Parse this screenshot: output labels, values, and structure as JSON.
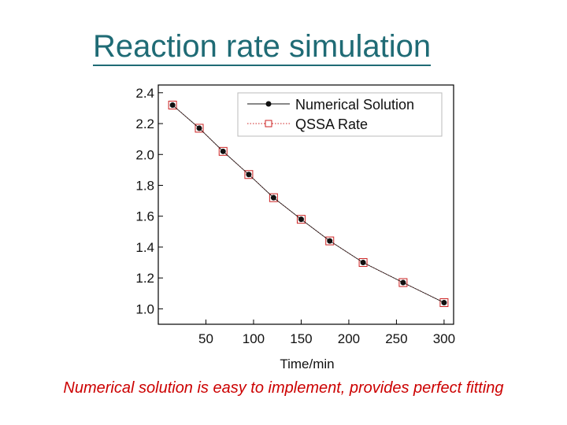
{
  "slide": {
    "title": "Reaction rate simulation",
    "caption": "Numerical solution is easy to implement, provides perfect fitting"
  },
  "colors": {
    "title": "#1f6b75",
    "caption": "#cc0000",
    "numerical": "#111111",
    "qssa": "#cc2222"
  },
  "chart_data": {
    "type": "line",
    "xlabel": "Time/min",
    "ylabel": "",
    "xlim": [
      0,
      310
    ],
    "ylim": [
      0.9,
      2.45
    ],
    "x_ticks": [
      50,
      100,
      150,
      200,
      250,
      300
    ],
    "y_ticks": [
      1.0,
      1.2,
      1.4,
      1.6,
      1.8,
      2.0,
      2.2,
      2.4
    ],
    "legend_position": "top-right",
    "grid": false,
    "series": [
      {
        "name": "Numerical Solution",
        "marker": "filled-circle",
        "line": "solid",
        "x": [
          15,
          43,
          68,
          95,
          121,
          150,
          180,
          215,
          257,
          300
        ],
        "y": [
          2.32,
          2.17,
          2.02,
          1.87,
          1.72,
          1.58,
          1.44,
          1.3,
          1.17,
          1.04
        ]
      },
      {
        "name": "QSSA Rate",
        "marker": "open-square",
        "line": "dotted",
        "x": [
          15,
          43,
          68,
          95,
          121,
          150,
          180,
          215,
          257,
          300
        ],
        "y": [
          2.32,
          2.17,
          2.02,
          1.87,
          1.72,
          1.58,
          1.44,
          1.3,
          1.17,
          1.04
        ]
      }
    ]
  }
}
